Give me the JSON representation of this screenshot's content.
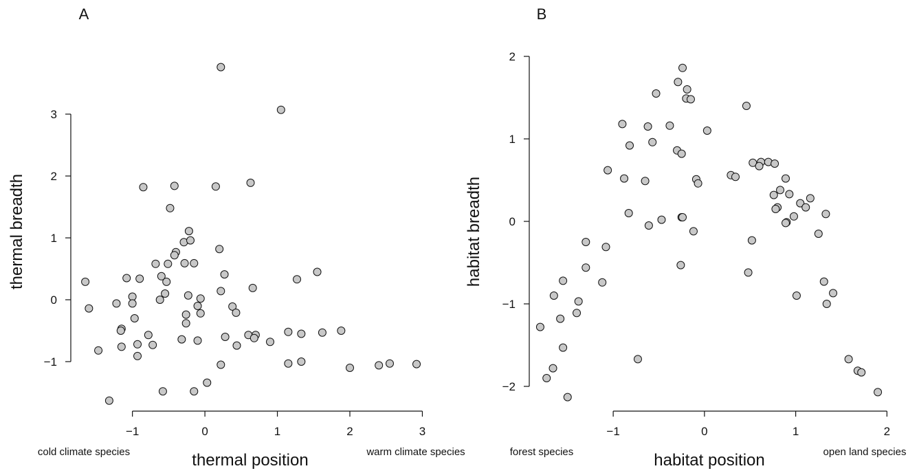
{
  "chart_data": [
    {
      "type": "scatter",
      "panel_label": "A",
      "xlabel": "thermal position",
      "ylabel": "thermal breadth",
      "x_end_left": "cold climate species",
      "x_end_right": "warm climate species",
      "xlim": [
        -1.85,
        3.1
      ],
      "ylim": [
        -1.8,
        4.0
      ],
      "xticks": [
        -1,
        0,
        1,
        2,
        3
      ],
      "yticks": [
        -1,
        0,
        1,
        2,
        3
      ],
      "xtick_labels": [
        "−1",
        "0",
        "1",
        "2",
        "3"
      ],
      "ytick_labels": [
        "−1",
        "0",
        "1",
        "2",
        "3"
      ],
      "marker_fill": "#c8c8c8",
      "grid": false,
      "points": [
        [
          0.22,
          3.76
        ],
        [
          1.05,
          3.07
        ],
        [
          -0.85,
          1.82
        ],
        [
          -0.42,
          1.84
        ],
        [
          0.15,
          1.83
        ],
        [
          0.63,
          1.89
        ],
        [
          -0.48,
          1.48
        ],
        [
          -0.22,
          1.11
        ],
        [
          -0.29,
          0.93
        ],
        [
          -0.2,
          0.96
        ],
        [
          0.2,
          0.82
        ],
        [
          -0.4,
          0.77
        ],
        [
          -0.42,
          0.72
        ],
        [
          -0.68,
          0.58
        ],
        [
          -0.51,
          0.58
        ],
        [
          -0.28,
          0.59
        ],
        [
          -0.15,
          0.59
        ],
        [
          -0.6,
          0.38
        ],
        [
          0.27,
          0.41
        ],
        [
          -1.65,
          0.29
        ],
        [
          -1.08,
          0.35
        ],
        [
          -0.9,
          0.34
        ],
        [
          -0.53,
          0.29
        ],
        [
          0.66,
          0.19
        ],
        [
          0.22,
          0.14
        ],
        [
          1.27,
          0.33
        ],
        [
          1.55,
          0.45
        ],
        [
          -0.55,
          0.1
        ],
        [
          -0.62,
          0.0
        ],
        [
          -0.23,
          0.07
        ],
        [
          -0.06,
          0.02
        ],
        [
          -1.0,
          0.05
        ],
        [
          -1.0,
          -0.06
        ],
        [
          -1.22,
          -0.06
        ],
        [
          -1.6,
          -0.14
        ],
        [
          -0.1,
          -0.1
        ],
        [
          0.38,
          -0.11
        ],
        [
          0.43,
          -0.21
        ],
        [
          -0.06,
          -0.22
        ],
        [
          -0.26,
          -0.24
        ],
        [
          -0.97,
          -0.3
        ],
        [
          -0.26,
          -0.38
        ],
        [
          -1.15,
          -0.47
        ],
        [
          -1.16,
          -0.5
        ],
        [
          1.15,
          -0.52
        ],
        [
          1.33,
          -0.55
        ],
        [
          1.62,
          -0.53
        ],
        [
          1.88,
          -0.5
        ],
        [
          0.6,
          -0.57
        ],
        [
          0.7,
          -0.57
        ],
        [
          0.68,
          -0.62
        ],
        [
          0.28,
          -0.6
        ],
        [
          -0.78,
          -0.57
        ],
        [
          -0.32,
          -0.64
        ],
        [
          -0.1,
          -0.66
        ],
        [
          0.9,
          -0.68
        ],
        [
          -0.72,
          -0.73
        ],
        [
          -0.93,
          -0.72
        ],
        [
          -1.15,
          -0.76
        ],
        [
          0.44,
          -0.74
        ],
        [
          -1.47,
          -0.82
        ],
        [
          -0.93,
          -0.91
        ],
        [
          1.15,
          -1.03
        ],
        [
          1.33,
          -1.0
        ],
        [
          0.22,
          -1.05
        ],
        [
          2.0,
          -1.1
        ],
        [
          2.4,
          -1.06
        ],
        [
          2.55,
          -1.03
        ],
        [
          2.92,
          -1.04
        ],
        [
          0.03,
          -1.34
        ],
        [
          -0.58,
          -1.48
        ],
        [
          -0.15,
          -1.48
        ],
        [
          -1.32,
          -1.63
        ]
      ]
    },
    {
      "type": "scatter",
      "panel_label": "B",
      "xlabel": "habitat position",
      "ylabel": "habitat breadth",
      "x_end_left": "forest species",
      "x_end_right": "open land species",
      "xlim": [
        -1.92,
        2.05
      ],
      "ylim": [
        -2.3,
        2.05
      ],
      "xticks": [
        -1,
        0,
        1,
        2
      ],
      "yticks": [
        -2,
        -1,
        0,
        1,
        2
      ],
      "xtick_labels": [
        "−1",
        "0",
        "1",
        "2"
      ],
      "ytick_labels": [
        "−2",
        "−1",
        "0",
        "1",
        "2"
      ],
      "marker_fill": "#c8c8c8",
      "grid": false,
      "points": [
        [
          -0.24,
          1.86
        ],
        [
          -0.29,
          1.69
        ],
        [
          -0.19,
          1.6
        ],
        [
          -0.53,
          1.55
        ],
        [
          -0.2,
          1.49
        ],
        [
          -0.15,
          1.48
        ],
        [
          0.46,
          1.4
        ],
        [
          -0.9,
          1.18
        ],
        [
          -0.62,
          1.15
        ],
        [
          -0.38,
          1.16
        ],
        [
          0.03,
          1.1
        ],
        [
          -0.57,
          0.96
        ],
        [
          -0.82,
          0.92
        ],
        [
          -0.3,
          0.86
        ],
        [
          -0.25,
          0.82
        ],
        [
          0.53,
          0.71
        ],
        [
          0.62,
          0.72
        ],
        [
          0.7,
          0.72
        ],
        [
          0.77,
          0.7
        ],
        [
          0.6,
          0.67
        ],
        [
          -1.06,
          0.62
        ],
        [
          0.29,
          0.56
        ],
        [
          0.34,
          0.54
        ],
        [
          -0.88,
          0.52
        ],
        [
          -0.65,
          0.49
        ],
        [
          -0.09,
          0.51
        ],
        [
          -0.07,
          0.46
        ],
        [
          0.89,
          0.52
        ],
        [
          0.83,
          0.38
        ],
        [
          0.76,
          0.32
        ],
        [
          0.93,
          0.33
        ],
        [
          1.05,
          0.22
        ],
        [
          1.16,
          0.28
        ],
        [
          0.8,
          0.17
        ],
        [
          0.78,
          0.15
        ],
        [
          1.11,
          0.17
        ],
        [
          -0.83,
          0.1
        ],
        [
          -0.25,
          0.05
        ],
        [
          -0.24,
          0.05
        ],
        [
          -0.47,
          0.02
        ],
        [
          0.98,
          0.06
        ],
        [
          1.33,
          0.09
        ],
        [
          0.9,
          -0.01
        ],
        [
          0.89,
          -0.02
        ],
        [
          -0.61,
          -0.05
        ],
        [
          -0.12,
          -0.12
        ],
        [
          1.25,
          -0.15
        ],
        [
          0.52,
          -0.23
        ],
        [
          -1.08,
          -0.31
        ],
        [
          -1.3,
          -0.25
        ],
        [
          -0.26,
          -0.53
        ],
        [
          -1.3,
          -0.56
        ],
        [
          0.48,
          -0.62
        ],
        [
          -1.55,
          -0.72
        ],
        [
          -1.12,
          -0.74
        ],
        [
          1.31,
          -0.73
        ],
        [
          -1.65,
          -0.9
        ],
        [
          1.01,
          -0.9
        ],
        [
          1.41,
          -0.87
        ],
        [
          -1.38,
          -0.97
        ],
        [
          1.34,
          -1.0
        ],
        [
          -1.4,
          -1.11
        ],
        [
          -1.58,
          -1.18
        ],
        [
          -1.8,
          -1.28
        ],
        [
          -1.55,
          -1.53
        ],
        [
          -0.73,
          -1.67
        ],
        [
          1.58,
          -1.67
        ],
        [
          -1.66,
          -1.78
        ],
        [
          1.68,
          -1.81
        ],
        [
          1.72,
          -1.83
        ],
        [
          -1.73,
          -1.9
        ],
        [
          1.9,
          -2.07
        ],
        [
          -1.5,
          -2.13
        ]
      ]
    }
  ]
}
